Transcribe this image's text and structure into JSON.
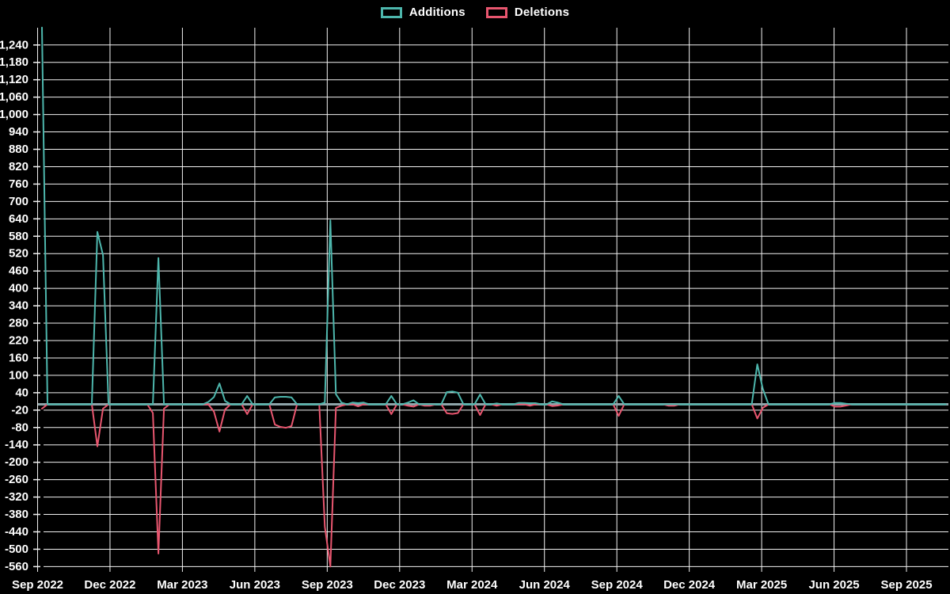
{
  "legend": {
    "position": "top",
    "items": [
      {
        "label": "Additions",
        "color": "#4db6ac"
      },
      {
        "label": "Deletions",
        "color": "#e8566f"
      }
    ]
  },
  "chart_data": {
    "type": "line",
    "title": "",
    "background": "#000000",
    "grid": true,
    "grid_color": "#f2f2f2",
    "zero_line_color": "#8ea4a9",
    "legend_position": "top",
    "x_axis": {
      "tick_labels": [
        "Sep 2022",
        "Dec 2022",
        "Mar 2023",
        "Jun 2023",
        "Sep 2023",
        "Dec 2023",
        "Mar 2024",
        "Jun 2024",
        "Sep 2024",
        "Dec 2024",
        "Mar 2025",
        "Jun 2025",
        "Sep 2025"
      ],
      "weeks_between_ticks": 13,
      "weeks_total": 164
    },
    "y_axis": {
      "min": -560,
      "max": 1240,
      "step": 60,
      "tick_values": [
        -560,
        -500,
        -440,
        -380,
        -320,
        -260,
        -200,
        -140,
        -80,
        -20,
        40,
        100,
        160,
        220,
        280,
        340,
        400,
        460,
        520,
        580,
        640,
        700,
        760,
        820,
        880,
        940,
        1000,
        1060,
        1120,
        1180,
        1240
      ]
    },
    "series": [
      {
        "name": "Additions",
        "color": "#4db6ac",
        "default_value": 0,
        "points_by_week": {
          "0": 1300,
          "10": 595,
          "11": 515,
          "21": 505,
          "30": 8,
          "31": 25,
          "32": 72,
          "33": 12,
          "37": 29,
          "42": 24,
          "43": 26,
          "44": 26,
          "45": 24,
          "51": 6,
          "52": 635,
          "53": 35,
          "54": 6,
          "56": 6,
          "57": 4,
          "58": 6,
          "63": 29,
          "66": 6,
          "67": 14,
          "73": 42,
          "74": 44,
          "75": 40,
          "79": 34,
          "82": 3,
          "86": 5,
          "87": 5,
          "88": 4,
          "89": 4,
          "92": 10,
          "93": 6,
          "104": 29,
          "129": 138,
          "130": 53,
          "143": 5,
          "144": 5,
          "145": 2
        }
      },
      {
        "name": "Deletions",
        "color": "#e8566f",
        "default_value": 0,
        "points_by_week": {
          "0": -15,
          "10": -145,
          "11": -15,
          "20": -30,
          "21": -515,
          "22": -15,
          "31": -25,
          "32": -94,
          "33": -18,
          "37": -34,
          "42": -70,
          "43": -78,
          "44": -81,
          "45": -75,
          "51": -422,
          "52": -560,
          "53": -12,
          "54": -5,
          "57": -7,
          "63": -34,
          "66": -5,
          "67": -8,
          "69": -5,
          "70": -5,
          "73": -31,
          "74": -33,
          "75": -30,
          "79": -37,
          "82": -5,
          "88": -5,
          "92": -6,
          "93": -4,
          "104": -40,
          "113": -5,
          "114": -5,
          "129": -49,
          "130": -12,
          "143": -8,
          "144": -8,
          "145": -4
        }
      }
    ]
  }
}
